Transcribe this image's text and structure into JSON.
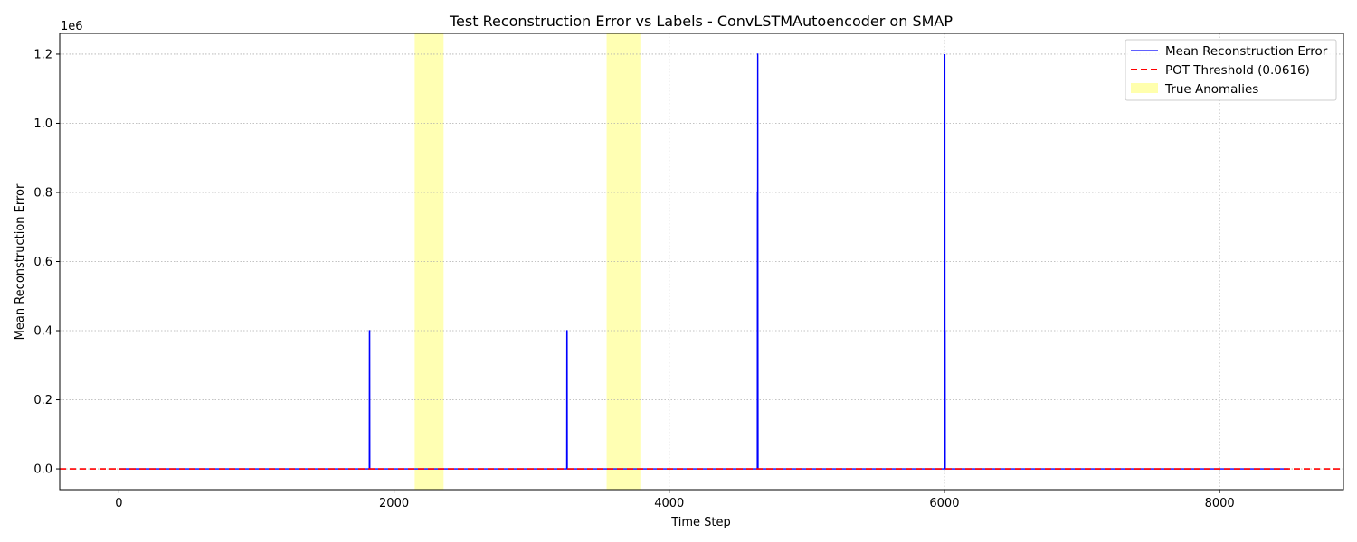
{
  "chart_data": {
    "type": "line",
    "title": "Test Reconstruction Error vs Labels - ConvLSTMAutoencoder on SMAP",
    "xlabel": "Time Step",
    "ylabel": "Mean Reconstruction Error",
    "y_scale_label": "1e6",
    "xlim": [
      -430,
      8900
    ],
    "ylim": [
      -0.06,
      1.26
    ],
    "x_ticks": [
      0,
      2000,
      4000,
      6000,
      8000
    ],
    "x_tick_labels": [
      "0",
      "2000",
      "4000",
      "6000",
      "8000"
    ],
    "y_ticks": [
      0.0,
      0.2,
      0.4,
      0.6,
      0.8,
      1.0,
      1.2
    ],
    "y_tick_labels": [
      "0.0",
      "0.2",
      "0.4",
      "0.6",
      "0.8",
      "1.0",
      "1.2"
    ],
    "grid": true,
    "legend_position": "top-right",
    "series": [
      {
        "name": "Mean Reconstruction Error",
        "color": "#0000ff",
        "style": "solid",
        "x": [
          0,
          1820,
          1821,
          1822,
          1823,
          1824,
          3255,
          3256,
          3257,
          3258,
          3259,
          4640,
          4641,
          4642,
          4643,
          4644,
          4645,
          4646,
          6000,
          6001,
          6002,
          6003,
          6004,
          6005,
          6006,
          8500
        ],
        "y": [
          0,
          0,
          0.4,
          0.4,
          0.4,
          0,
          0,
          0.4,
          0.4,
          0.4,
          0,
          0,
          0.8,
          0.4,
          1.2,
          1.2,
          0.4,
          0,
          0,
          0.8,
          0.4,
          1.2,
          0.4,
          0.4,
          0,
          0
        ]
      },
      {
        "name": "POT Threshold (0.0616)",
        "color": "#ff0000",
        "style": "dashed",
        "value": 0.0616
      }
    ],
    "shaded_regions": {
      "name": "True Anomalies",
      "color": "#ffff99",
      "ranges": [
        [
          2150,
          2360
        ],
        [
          3545,
          3790
        ]
      ]
    }
  }
}
